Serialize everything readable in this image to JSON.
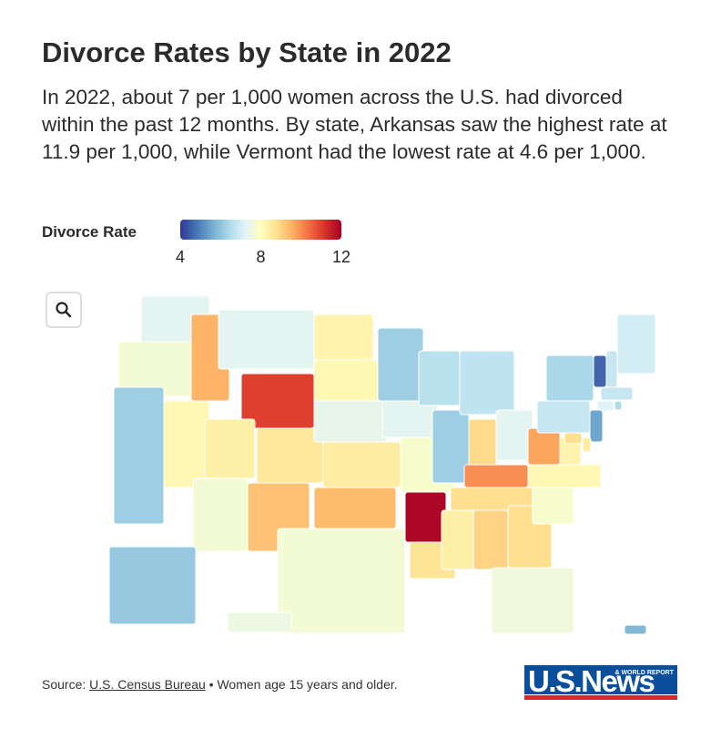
{
  "chart_data": {
    "type": "choropleth",
    "title": "Divorce Rates by State in 2022",
    "subtitle": "In 2022, about 7 per 1,000 women across the U.S. had divorced within the past 12 months. By state, Arkansas saw the highest rate at 11.9 per 1,000, while Vermont had the lowest rate at 4.6 per 1,000.",
    "legend_title": "Divorce Rate",
    "colorlim": [
      4,
      12
    ],
    "colorticks": [
      4,
      8,
      12
    ],
    "colors": [
      "#313695",
      "#4575b4",
      "#74add1",
      "#abd9e9",
      "#e0f3f8",
      "#ffffbf",
      "#fee090",
      "#fdae61",
      "#f46d43",
      "#d73027",
      "#a50026"
    ],
    "values": [
      7.3,
      7.7,
      6.2,
      8.2,
      9.5,
      7.3,
      11,
      8.4,
      7.7,
      8.6,
      9.3,
      8.3,
      8.2,
      7.4,
      8.5,
      9.4,
      7.7,
      6.2,
      7.3,
      7.8,
      11.9,
      8.7,
      6.6,
      6.2,
      6.7,
      8.9,
      7.3,
      10,
      8.8,
      8.4,
      9,
      8.8,
      7.6,
      7.8,
      8.2,
      8.3,
      9.7,
      6.8,
      6.4,
      4.6,
      6.8,
      7,
      6.8,
      7.2,
      6.5,
      5.5,
      8.5,
      8.8,
      6.1,
      7.5,
      5.8
    ]
  },
  "footer": {
    "prefix": "Source:",
    "link": "U.S. Census Bureau",
    "note": "• Women age 15 years and older."
  },
  "logo": {
    "name": "U.S.News",
    "tagline": "& WORLD REPORT"
  }
}
